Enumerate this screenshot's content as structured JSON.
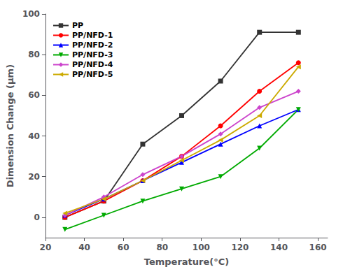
{
  "chart_data": {
    "type": "line",
    "xlabel": "Temperature(°C)",
    "ylabel": "Dimension Change (μm)",
    "x": [
      30,
      50,
      70,
      90,
      110,
      130,
      150
    ],
    "series": [
      {
        "name": "PP",
        "color": "#333333",
        "marker": "square",
        "values": [
          0,
          8,
          36,
          50,
          67,
          91,
          91
        ]
      },
      {
        "name": "PP/NFD-1",
        "color": "#ff0000",
        "marker": "circle",
        "values": [
          0,
          8,
          18,
          30,
          45,
          62,
          76
        ]
      },
      {
        "name": "PP/NFD-2",
        "color": "#0000ff",
        "marker": "triangle_up",
        "values": [
          1,
          9,
          18,
          27,
          36,
          45,
          53
        ]
      },
      {
        "name": "PP/NFD-3",
        "color": "#00aa00",
        "marker": "triangle_down",
        "values": [
          -6,
          1,
          8,
          14,
          20,
          34,
          53
        ]
      },
      {
        "name": "PP/NFD-4",
        "color": "#cc44cc",
        "marker": "diamond",
        "values": [
          1,
          10,
          21,
          30,
          41,
          54,
          62
        ]
      },
      {
        "name": "PP/NFD-5",
        "color": "#ccaa00",
        "marker": "triangle_left",
        "values": [
          2,
          9,
          18,
          28,
          38,
          50,
          74
        ]
      }
    ],
    "xlim": [
      20,
      165
    ],
    "ylim": [
      -10,
      100
    ],
    "xticks": [
      20,
      40,
      60,
      80,
      100,
      120,
      140,
      160
    ],
    "yticks": [
      0,
      20,
      40,
      60,
      80,
      100
    ],
    "grid": false,
    "legend": "upper left"
  }
}
